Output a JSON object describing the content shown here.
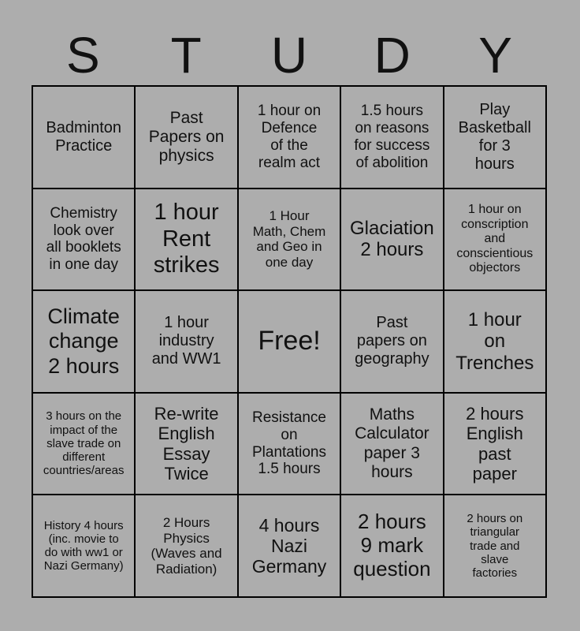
{
  "page": {
    "colors": {
      "page-bg": "#adadad",
      "cell-bg": "#adadad",
      "line": "#000000",
      "text": "#111111"
    }
  },
  "title": {
    "text": "STUDY",
    "letters": [
      "S",
      "T",
      "U",
      "D",
      "Y"
    ]
  },
  "grid": {
    "rows": 5,
    "cols": 5,
    "free_cell_index": 12,
    "cells": [
      {
        "text": "Badminton\nPractice",
        "size": 20
      },
      {
        "text": "Past\nPapers on\nphysics",
        "size": 21
      },
      {
        "text": "1 hour on\nDefence\nof the\nrealm act",
        "size": 19
      },
      {
        "text": "1.5 hours\non reasons\nfor success\nof abolition",
        "size": 19
      },
      {
        "text": "Play\nBasketball\nfor 3\nhours",
        "size": 20
      },
      {
        "text": "Chemistry\nlook over\nall booklets\nin one day",
        "size": 19
      },
      {
        "text": "1 hour\nRent\nstrikes",
        "size": 29
      },
      {
        "text": "1 Hour\nMath, Chem\nand Geo in\none day",
        "size": 17
      },
      {
        "text": "Glaciation\n2 hours",
        "size": 24
      },
      {
        "text": "1 hour on\nconscription\nand\nconscientious\nobjectors",
        "size": 16
      },
      {
        "text": "Climate\nchange\n2 hours",
        "size": 27
      },
      {
        "text": "1 hour\nindustry\nand WW1",
        "size": 20
      },
      {
        "text": "Free!",
        "size": 34,
        "free": true
      },
      {
        "text": "Past\npapers on\ngeography",
        "size": 20
      },
      {
        "text": "1 hour\non\nTrenches",
        "size": 24
      },
      {
        "text": "3 hours on the\nimpact of the\nslave trade on\ndifferent\ncountries/areas",
        "size": 15
      },
      {
        "text": "Re-write\nEnglish\nEssay\nTwice",
        "size": 22
      },
      {
        "text": "Resistance\non\nPlantations\n1.5 hours",
        "size": 19
      },
      {
        "text": "Maths\nCalculator\npaper 3\nhours",
        "size": 21
      },
      {
        "text": "2 hours\nEnglish\npast\npaper",
        "size": 22
      },
      {
        "text": "History 4 hours\n(inc. movie to\ndo with ww1 or\nNazi Germany)",
        "size": 15
      },
      {
        "text": "2 Hours\nPhysics\n(Waves and\nRadiation)",
        "size": 17
      },
      {
        "text": "4 hours\nNazi\nGermany",
        "size": 23
      },
      {
        "text": "2 hours\n9 mark\nquestion",
        "size": 26
      },
      {
        "text": "2 hours on\ntriangular\ntrade and\nslave\nfactories",
        "size": 15
      }
    ]
  }
}
